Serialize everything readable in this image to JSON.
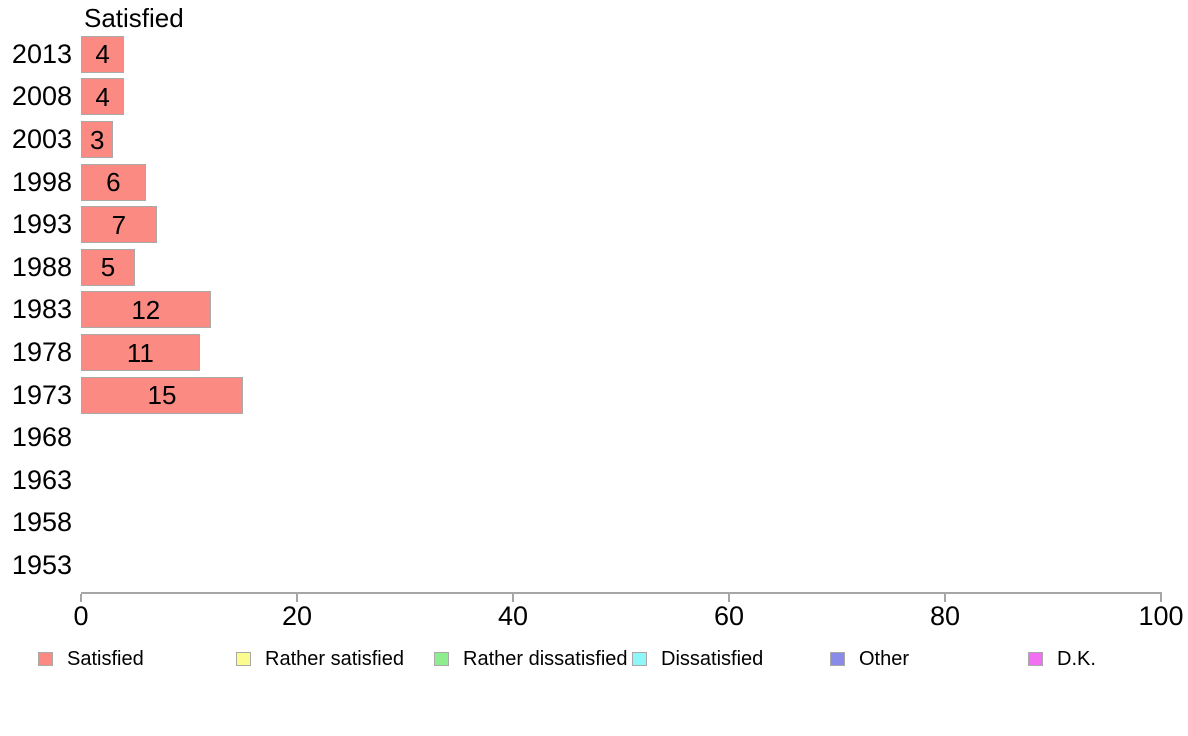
{
  "chart_data": {
    "type": "bar",
    "orientation": "horizontal",
    "title": "Satisfied",
    "categories": [
      "2013",
      "2008",
      "2003",
      "1998",
      "1993",
      "1988",
      "1983",
      "1978",
      "1973",
      "1968",
      "1963",
      "1958",
      "1953"
    ],
    "values": [
      4,
      4,
      3,
      6,
      7,
      5,
      12,
      11,
      15,
      null,
      null,
      null,
      null
    ],
    "value_labels": [
      "4",
      "4",
      "3",
      "6",
      "7",
      "5",
      "12",
      "11",
      "15",
      "",
      "",
      "",
      ""
    ],
    "xlim": [
      0,
      100
    ],
    "x_ticks": [
      0,
      20,
      40,
      60,
      80,
      100
    ],
    "grid": false,
    "legend_position": "bottom",
    "bar_fill_color": "#fa8a82",
    "bar_border_color": "#a9a9a9",
    "axis_line_color": "#a6a6a6",
    "text_color": "#000000",
    "legend": [
      {
        "label": "Satisfied",
        "color": "#fa8a82"
      },
      {
        "label": "Rather satisfied",
        "color": "#fbfb8e"
      },
      {
        "label": "Rather dissatisfied",
        "color": "#8eee8e"
      },
      {
        "label": "Dissatisfied",
        "color": "#8ef6f6"
      },
      {
        "label": "Other",
        "color": "#8a8ae9"
      },
      {
        "label": "D.K.",
        "color": "#f26ef2"
      }
    ]
  }
}
